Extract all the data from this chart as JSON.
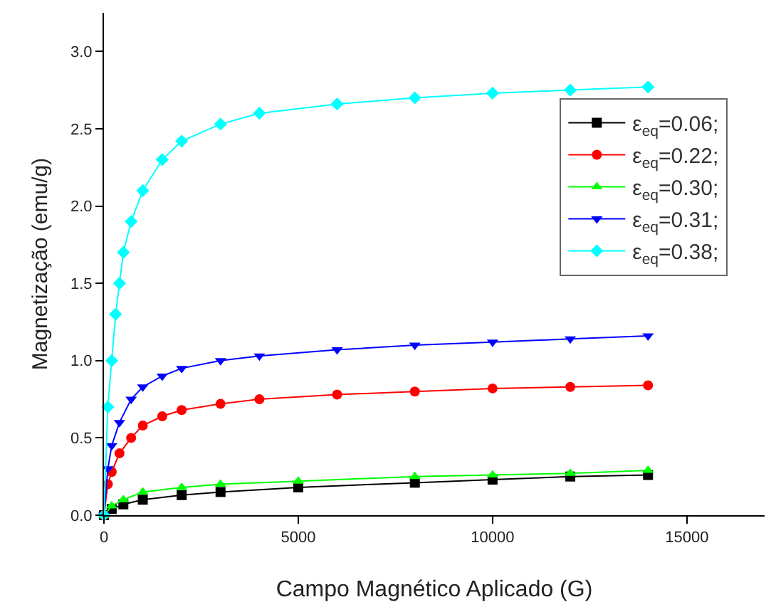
{
  "chart_data": {
    "type": "line",
    "xlabel": "Campo Magnético Aplicado (G)",
    "ylabel": "Magnetização (emu/g)",
    "xlim": [
      0,
      17000
    ],
    "xticks": [
      0,
      5000,
      10000,
      15000
    ],
    "ylim": [
      0,
      3.25
    ],
    "yticks": [
      {
        "value": 0,
        "label": "0.0"
      },
      0.5,
      {
        "value": 1,
        "label": "1.0"
      },
      1.5,
      {
        "value": 2,
        "label": "2.0"
      },
      2.5,
      {
        "value": 3,
        "label": "3.0"
      }
    ],
    "grid": false,
    "legend": "right",
    "line_style": "solid",
    "series": [
      {
        "name": "ε$_{eq}$=0.06;",
        "color": "#000000",
        "marker": "square",
        "x": [
          0,
          200,
          500,
          1000,
          2000,
          3000,
          5000,
          8000,
          10000,
          12000,
          14000
        ],
        "values": [
          0,
          0.04,
          0.07,
          0.1,
          0.13,
          0.15,
          0.18,
          0.21,
          0.23,
          0.25,
          0.26
        ]
      },
      {
        "name": "ε$_{eq}$=0.22;",
        "color": "#ff0000",
        "marker": "circle",
        "x": [
          0,
          100,
          200,
          400,
          700,
          1000,
          1500,
          2000,
          3000,
          4000,
          6000,
          8000,
          10000,
          12000,
          14000
        ],
        "values": [
          0,
          0.2,
          0.28,
          0.4,
          0.5,
          0.58,
          0.64,
          0.68,
          0.72,
          0.75,
          0.78,
          0.8,
          0.82,
          0.83,
          0.84
        ]
      },
      {
        "name": "ε$_{eq}$=0.30;",
        "color": "#00ff00",
        "marker": "triangle",
        "x": [
          0,
          200,
          500,
          1000,
          2000,
          3000,
          5000,
          8000,
          10000,
          12000,
          14000
        ],
        "values": [
          0,
          0.06,
          0.1,
          0.15,
          0.18,
          0.2,
          0.22,
          0.25,
          0.26,
          0.27,
          0.29
        ]
      },
      {
        "name": "ε$_{eq}$=0.31;",
        "color": "#0000ff",
        "marker": "triangle-down",
        "x": [
          0,
          100,
          200,
          400,
          700,
          1000,
          1500,
          2000,
          3000,
          4000,
          6000,
          8000,
          10000,
          12000,
          14000
        ],
        "values": [
          0,
          0.3,
          0.45,
          0.6,
          0.75,
          0.83,
          0.9,
          0.95,
          1.0,
          1.03,
          1.07,
          1.1,
          1.12,
          1.14,
          1.16
        ]
      },
      {
        "name": "ε$_{eq}$=0.38;",
        "color": "#00ffff",
        "marker": "diamond",
        "x": [
          0,
          100,
          200,
          300,
          400,
          500,
          700,
          1000,
          1500,
          2000,
          3000,
          4000,
          6000,
          8000,
          10000,
          12000,
          14000
        ],
        "values": [
          0,
          0.7,
          1.0,
          1.3,
          1.5,
          1.7,
          1.9,
          2.1,
          2.3,
          2.42,
          2.53,
          2.6,
          2.66,
          2.7,
          2.73,
          2.75,
          2.77
        ]
      }
    ]
  }
}
